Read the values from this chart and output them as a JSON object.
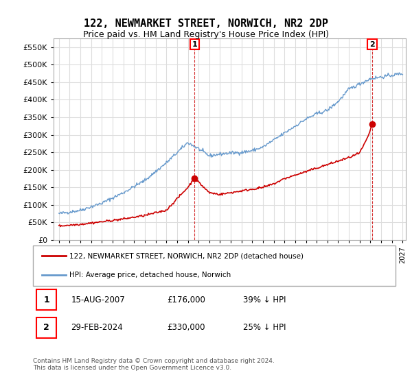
{
  "title": "122, NEWMARKET STREET, NORWICH, NR2 2DP",
  "subtitle": "Price paid vs. HM Land Registry's House Price Index (HPI)",
  "ylabel_ticks": [
    0,
    50000,
    100000,
    150000,
    200000,
    250000,
    300000,
    350000,
    400000,
    450000,
    500000,
    550000
  ],
  "xlim": [
    1995,
    2027
  ],
  "ylim": [
    0,
    575000
  ],
  "legend_line1": "122, NEWMARKET STREET, NORWICH, NR2 2DP (detached house)",
  "legend_line2": "HPI: Average price, detached house, Norwich",
  "sale1_date": "15-AUG-2007",
  "sale1_price": "£176,000",
  "sale1_hpi": "39% ↓ HPI",
  "sale1_year": 2007.62,
  "sale1_value": 176000,
  "sale2_date": "29-FEB-2024",
  "sale2_price": "£330,000",
  "sale2_hpi": "25% ↓ HPI",
  "sale2_year": 2024.16,
  "sale2_value": 330000,
  "line_color_red": "#cc0000",
  "line_color_blue": "#6699cc",
  "grid_color": "#dddddd",
  "background_color": "#ffffff",
  "footer": "Contains HM Land Registry data © Crown copyright and database right 2024.\nThis data is licensed under the Open Government Licence v3.0.",
  "hpi_anchors_x": [
    1995,
    1997,
    1999,
    2001,
    2003,
    2005,
    2007,
    2008,
    2009,
    2010,
    2011,
    2012,
    2013,
    2014,
    2015,
    2016,
    2017,
    2018,
    2019,
    2020,
    2021,
    2022,
    2023,
    2024,
    2025,
    2026,
    2027
  ],
  "hpi_anchors_y": [
    75000,
    85000,
    105000,
    135000,
    170000,
    220000,
    278000,
    260000,
    240000,
    245000,
    248000,
    250000,
    255000,
    265000,
    285000,
    305000,
    325000,
    345000,
    360000,
    370000,
    395000,
    430000,
    445000,
    460000,
    465000,
    470000,
    475000
  ],
  "red_anchors_x": [
    1995,
    1997,
    1999,
    2001,
    2003,
    2005,
    2007,
    2007.62,
    2008,
    2009,
    2010,
    2011,
    2012,
    2013,
    2014,
    2015,
    2016,
    2017,
    2018,
    2019,
    2020,
    2021,
    2022,
    2023,
    2023.8,
    2024.16
  ],
  "red_anchors_y": [
    40000,
    45000,
    52000,
    60000,
    70000,
    85000,
    150000,
    176000,
    165000,
    135000,
    130000,
    135000,
    140000,
    145000,
    150000,
    160000,
    175000,
    185000,
    195000,
    205000,
    215000,
    225000,
    235000,
    248000,
    295000,
    330000
  ]
}
